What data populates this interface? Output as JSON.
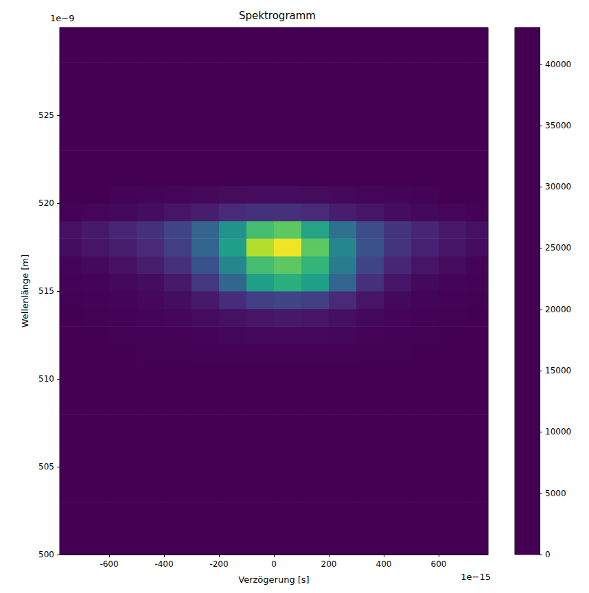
{
  "chart_data": {
    "type": "heatmap",
    "title": "Spektrogramm",
    "xlabel": "Verzögerung [s]",
    "ylabel": "Wellenlänge [m]",
    "annotations": [
      {
        "text": "1e−9",
        "axis": "y"
      },
      {
        "text": "1e−15",
        "axis": "x"
      }
    ],
    "xlim": [
      -780,
      780
    ],
    "xticks": [
      -600,
      -400,
      -200,
      0,
      200,
      400,
      600
    ],
    "ylim": [
      500,
      530
    ],
    "yticks": [
      500,
      505,
      510,
      515,
      520,
      525
    ],
    "x": [
      -750,
      -650,
      -550,
      -450,
      -350,
      -250,
      -150,
      -50,
      50,
      150,
      250,
      350,
      450,
      550,
      650,
      750
    ],
    "y": [
      500.5,
      501.5,
      502.5,
      503.5,
      504.5,
      505.5,
      506.5,
      507.5,
      508.5,
      509.5,
      510.5,
      511.5,
      512.5,
      513.5,
      514.5,
      515.5,
      516.5,
      517.5,
      518.5,
      519.5,
      520.5,
      521.5,
      522.5,
      523.5,
      524.5,
      525.5,
      526.5,
      527.5,
      528.5,
      529.5
    ],
    "z": [
      [
        0,
        0,
        0,
        0,
        0,
        0,
        0,
        0,
        0,
        0,
        0,
        0,
        0,
        0,
        0,
        0
      ],
      [
        0,
        0,
        0,
        0,
        0,
        0,
        0,
        0,
        0,
        0,
        0,
        0,
        0,
        0,
        0,
        0
      ],
      [
        0,
        0,
        0,
        0,
        0,
        0,
        0,
        0,
        0,
        0,
        0,
        0,
        0,
        0,
        0,
        0
      ],
      [
        0,
        0,
        0,
        0,
        0,
        0,
        0,
        0,
        0,
        0,
        0,
        0,
        0,
        0,
        0,
        0
      ],
      [
        0,
        0,
        0,
        0,
        0,
        0,
        0,
        0,
        0,
        0,
        0,
        0,
        0,
        0,
        0,
        0
      ],
      [
        0,
        0,
        0,
        0,
        0,
        0,
        0,
        0,
        0,
        0,
        0,
        0,
        0,
        0,
        0,
        0
      ],
      [
        0,
        0,
        0,
        0,
        0,
        0,
        0,
        0,
        0,
        0,
        0,
        0,
        0,
        0,
        0,
        0
      ],
      [
        0,
        0,
        0,
        0,
        0,
        0,
        0,
        0,
        0,
        0,
        0,
        0,
        0,
        0,
        0,
        0
      ],
      [
        0,
        0,
        0,
        0,
        0,
        0,
        0,
        0,
        0,
        0,
        0,
        0,
        0,
        0,
        0,
        0
      ],
      [
        0,
        0,
        0,
        0,
        0,
        0,
        0,
        0,
        0,
        0,
        0,
        0,
        0,
        0,
        0,
        0
      ],
      [
        0,
        0,
        0,
        0,
        0,
        0,
        0,
        0,
        0,
        0,
        0,
        0,
        0,
        0,
        0,
        0
      ],
      [
        0,
        0,
        0,
        100,
        100,
        200,
        300,
        300,
        300,
        300,
        200,
        100,
        100,
        0,
        0,
        0
      ],
      [
        0,
        0,
        100,
        200,
        300,
        500,
        700,
        900,
        1000,
        900,
        700,
        400,
        200,
        100,
        0,
        0
      ],
      [
        0,
        100,
        200,
        400,
        700,
        1200,
        2000,
        2500,
        2800,
        2500,
        1800,
        1000,
        500,
        200,
        100,
        0
      ],
      [
        100,
        200,
        400,
        800,
        1500,
        3000,
        5500,
        8000,
        9000,
        8000,
        5000,
        2500,
        1000,
        400,
        200,
        100
      ],
      [
        200,
        400,
        800,
        1500,
        3000,
        7000,
        14000,
        24000,
        27000,
        24000,
        14000,
        6000,
        2500,
        1000,
        400,
        200
      ],
      [
        500,
        1000,
        2000,
        3500,
        6000,
        11000,
        20000,
        30000,
        32000,
        28000,
        18000,
        9000,
        4500,
        2500,
        1200,
        500
      ],
      [
        1500,
        2500,
        3500,
        5000,
        8000,
        14000,
        24000,
        38000,
        42000,
        32000,
        20000,
        11000,
        6500,
        4000,
        2500,
        1500
      ],
      [
        2000,
        3000,
        4500,
        6000,
        9000,
        14000,
        22000,
        30000,
        32000,
        25000,
        16000,
        10000,
        6500,
        4500,
        3000,
        2000
      ],
      [
        300,
        600,
        1000,
        1500,
        2500,
        3500,
        5000,
        6000,
        6000,
        5000,
        3500,
        2500,
        1500,
        1000,
        600,
        300
      ],
      [
        0,
        0,
        200,
        400,
        600,
        900,
        1200,
        1400,
        1400,
        1200,
        900,
        600,
        400,
        200,
        0,
        0
      ],
      [
        0,
        0,
        0,
        0,
        0,
        0,
        0,
        0,
        0,
        0,
        0,
        0,
        0,
        0,
        0,
        0
      ],
      [
        0,
        0,
        0,
        0,
        0,
        0,
        0,
        0,
        0,
        0,
        0,
        0,
        0,
        0,
        0,
        0
      ],
      [
        0,
        0,
        0,
        0,
        0,
        0,
        0,
        0,
        0,
        0,
        0,
        0,
        0,
        0,
        0,
        0
      ],
      [
        0,
        0,
        0,
        0,
        0,
        0,
        0,
        0,
        0,
        0,
        0,
        0,
        0,
        0,
        0,
        0
      ],
      [
        0,
        0,
        0,
        0,
        0,
        0,
        0,
        0,
        0,
        0,
        0,
        0,
        0,
        0,
        0,
        0
      ],
      [
        0,
        0,
        0,
        0,
        0,
        0,
        0,
        0,
        0,
        0,
        0,
        0,
        0,
        0,
        0,
        0
      ],
      [
        0,
        0,
        0,
        0,
        0,
        0,
        0,
        0,
        0,
        0,
        0,
        0,
        0,
        0,
        0,
        0
      ],
      [
        0,
        0,
        0,
        0,
        0,
        0,
        0,
        0,
        0,
        0,
        0,
        0,
        0,
        0,
        0,
        0
      ],
      [
        0,
        0,
        0,
        0,
        0,
        0,
        0,
        0,
        0,
        0,
        0,
        0,
        0,
        0,
        0,
        0
      ]
    ],
    "colorbar": {
      "range": [
        0,
        43000
      ],
      "ticks": [
        0,
        5000,
        10000,
        15000,
        20000,
        25000,
        30000,
        35000,
        40000
      ]
    }
  }
}
